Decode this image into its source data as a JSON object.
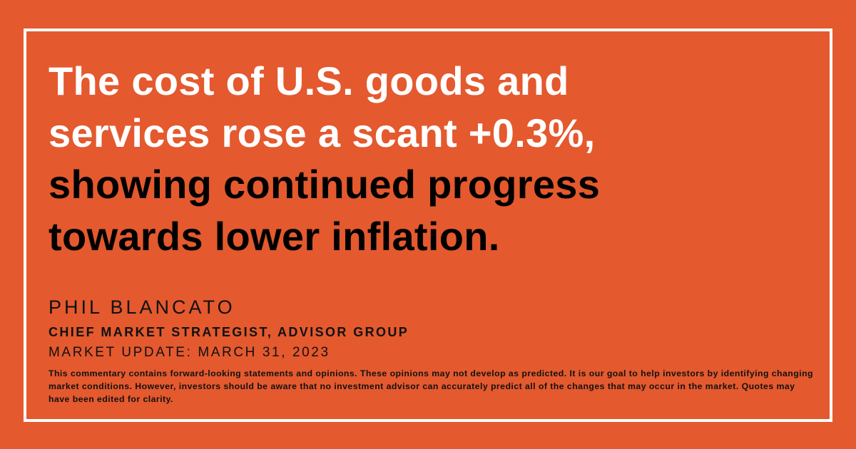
{
  "quote": {
    "lines": [
      {
        "text": "The cost of U.S. goods and",
        "color": "#ffffff"
      },
      {
        "text": "services rose a scant +0.3%,",
        "color": "#ffffff"
      },
      {
        "text": "showing continued progress",
        "color": "#000000"
      },
      {
        "text": "towards lower inflation.",
        "color": "#000000"
      }
    ]
  },
  "attribution": {
    "name": "PHIL BLANCATO",
    "role": "CHIEF MARKET STRATEGIST, ADVISOR GROUP",
    "date": "MARKET UPDATE: MARCH 31, 2023"
  },
  "disclaimer": "This commentary contains forward-looking statements and opinions. These opinions may not develop as predicted. It is our goal to help investors by identifying changing market conditions. However, investors should be aware that no investment advisor can accurately predict all of the changes that may occur in the market. Quotes may have been edited for clarity."
}
